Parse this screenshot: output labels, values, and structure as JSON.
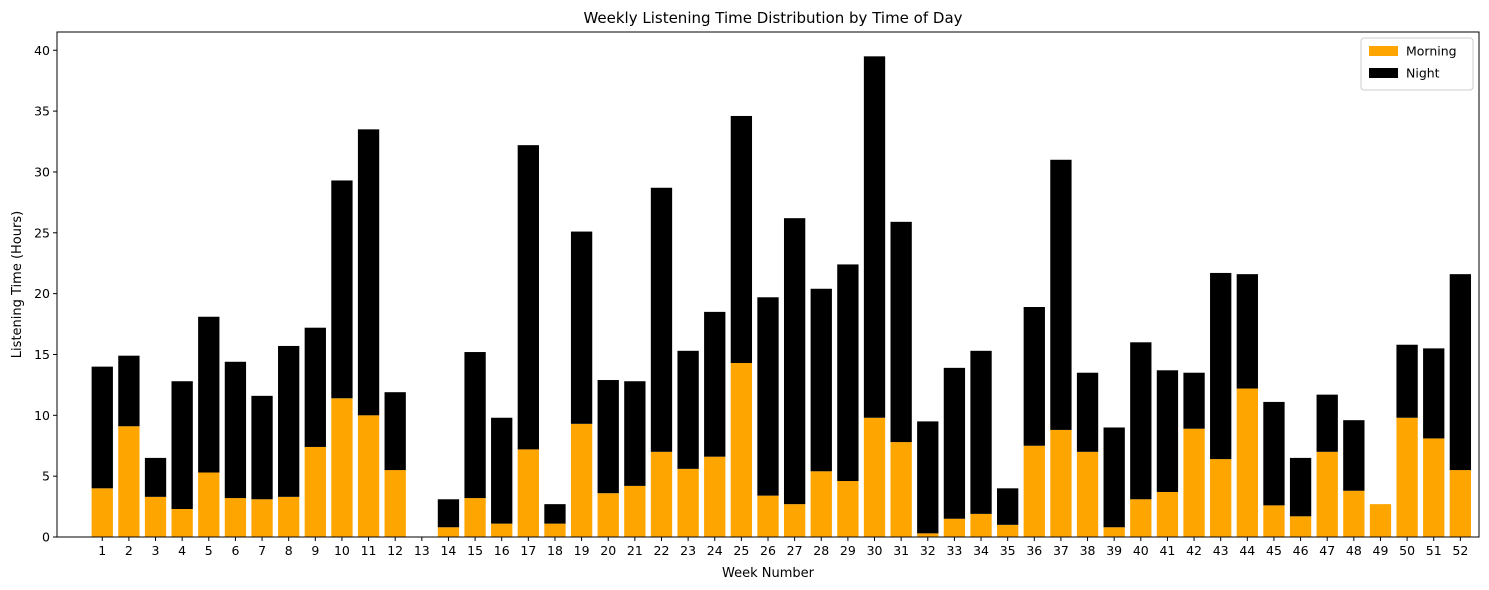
{
  "chart_data": {
    "type": "bar",
    "stacked": true,
    "title": "Weekly Listening Time Distribution by Time of Day",
    "xlabel": "Week Number",
    "ylabel": "Listening Time (Hours)",
    "ylim": [
      0,
      41.5
    ],
    "yticks": [
      0,
      5,
      10,
      15,
      20,
      25,
      30,
      35,
      40
    ],
    "grid": false,
    "legend_position": "top-right",
    "categories": [
      "1",
      "2",
      "3",
      "4",
      "5",
      "6",
      "7",
      "8",
      "9",
      "10",
      "11",
      "12",
      "13",
      "14",
      "15",
      "16",
      "17",
      "18",
      "19",
      "20",
      "21",
      "22",
      "23",
      "24",
      "25",
      "26",
      "27",
      "28",
      "29",
      "30",
      "31",
      "32",
      "33",
      "34",
      "35",
      "36",
      "37",
      "38",
      "39",
      "40",
      "41",
      "42",
      "43",
      "44",
      "45",
      "46",
      "47",
      "48",
      "49",
      "50",
      "51",
      "52"
    ],
    "series": [
      {
        "name": "Morning",
        "color": "#FFA500",
        "values": [
          4.0,
          9.1,
          3.3,
          2.3,
          5.3,
          3.2,
          3.1,
          3.3,
          7.4,
          11.4,
          10.0,
          5.5,
          0,
          0.8,
          3.2,
          1.1,
          7.2,
          1.1,
          9.3,
          3.6,
          4.2,
          7.0,
          5.6,
          6.6,
          14.3,
          3.4,
          2.7,
          5.4,
          4.6,
          9.8,
          7.8,
          0.3,
          1.5,
          1.9,
          1.0,
          7.5,
          8.8,
          7.0,
          0.8,
          3.1,
          3.7,
          8.9,
          6.4,
          12.2,
          2.6,
          1.7,
          7.0,
          3.8,
          2.7,
          9.8,
          8.1,
          5.5
        ]
      },
      {
        "name": "Night",
        "color": "#000000",
        "values": [
          10.0,
          5.8,
          3.2,
          10.5,
          12.8,
          11.2,
          8.5,
          12.4,
          9.8,
          17.9,
          23.5,
          6.4,
          0,
          2.3,
          12.0,
          8.7,
          25.0,
          1.6,
          15.8,
          9.3,
          8.6,
          21.7,
          9.7,
          11.9,
          20.3,
          16.3,
          23.5,
          15.0,
          17.8,
          29.7,
          18.1,
          9.2,
          12.4,
          13.4,
          3.0,
          11.4,
          22.2,
          6.5,
          8.2,
          12.9,
          10.0,
          4.6,
          15.3,
          9.4,
          8.5,
          4.8,
          4.7,
          5.8,
          0,
          6.0,
          7.4,
          16.1
        ]
      }
    ]
  }
}
